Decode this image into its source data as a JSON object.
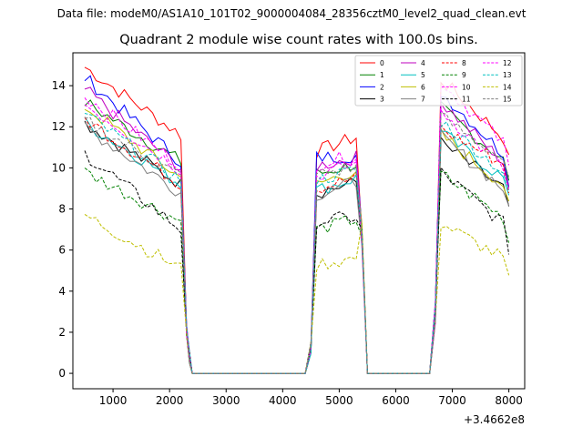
{
  "figure": {
    "suptitle": "Data file: modeM0/AS1A10_101T02_9000004084_28356cztM0_level2_quad_clean.evt"
  },
  "chart_data": {
    "type": "line",
    "title": "Quadrant 2 module wise count rates with 100.0s bins.",
    "xlabel": "",
    "ylabel": "",
    "x_offset_label": "+3.4662e8",
    "xlim": [
      290,
      8280
    ],
    "ylim": [
      -0.75,
      15.6
    ],
    "xticks": [
      1000,
      2000,
      3000,
      4000,
      5000,
      6000,
      7000,
      8000
    ],
    "xtick_labels": [
      "1000",
      "2000",
      "3000",
      "4000",
      "5000",
      "6000",
      "7000",
      "8000"
    ],
    "yticks": [
      0,
      2,
      4,
      6,
      8,
      10,
      12,
      14
    ],
    "ytick_labels": [
      "0",
      "2",
      "4",
      "6",
      "8",
      "10",
      "12",
      "14"
    ],
    "grid": false,
    "legend_position": "top-right",
    "legend_columns": 4,
    "segments": [
      [
        500,
        2200
      ],
      [
        4600,
        5300
      ],
      [
        6800,
        7900
      ]
    ],
    "zero_ranges": [
      [
        2400,
        4400
      ],
      [
        5500,
        6600
      ]
    ],
    "series": [
      {
        "name": "0",
        "color": "#ff0000",
        "style": "solid",
        "level": [
          14.9,
          11.6
        ],
        "seg2": [
          10.8,
          11.5
        ],
        "seg3": [
          14.3,
          11.5
        ]
      },
      {
        "name": "1",
        "color": "#008000",
        "style": "solid",
        "level": [
          13.2,
          10.3
        ],
        "seg2": [
          9.7,
          10.2
        ],
        "seg3": [
          12.9,
          10.4
        ]
      },
      {
        "name": "2",
        "color": "#0000ff",
        "style": "solid",
        "level": [
          14.4,
          10.3
        ],
        "seg2": [
          10.5,
          10.6
        ],
        "seg3": [
          13.7,
          10.7
        ]
      },
      {
        "name": "3",
        "color": "#000000",
        "style": "solid",
        "level": [
          12.2,
          9.2
        ],
        "seg2": [
          8.8,
          9.3
        ],
        "seg3": [
          11.2,
          9.0
        ]
      },
      {
        "name": "4",
        "color": "#bf00bf",
        "style": "solid",
        "level": [
          13.8,
          10.0
        ],
        "seg2": [
          10.1,
          10.5
        ],
        "seg3": [
          13.2,
          10.3
        ]
      },
      {
        "name": "5",
        "color": "#00bfbf",
        "style": "solid",
        "level": [
          12.2,
          9.2
        ],
        "seg2": [
          8.9,
          9.5
        ],
        "seg3": [
          11.7,
          9.5
        ]
      },
      {
        "name": "6",
        "color": "#bfbf00",
        "style": "solid",
        "level": [
          13.0,
          9.5
        ],
        "seg2": [
          9.2,
          9.9
        ],
        "seg3": [
          11.6,
          9.2
        ]
      },
      {
        "name": "7",
        "color": "#808080",
        "style": "solid",
        "level": [
          12.0,
          8.8
        ],
        "seg2": [
          8.7,
          9.3
        ],
        "seg3": [
          11.5,
          9.0
        ]
      },
      {
        "name": "8",
        "color": "#ff0000",
        "style": "dashed",
        "level": [
          12.4,
          9.2
        ],
        "seg2": [
          9.0,
          9.5
        ],
        "seg3": [
          11.9,
          10.2
        ]
      },
      {
        "name": "9",
        "color": "#008000",
        "style": "dashed",
        "level": [
          9.8,
          7.4
        ],
        "seg2": [
          7.0,
          7.5
        ],
        "seg3": [
          9.7,
          7.6
        ]
      },
      {
        "name": "10",
        "color": "#ff00ff",
        "style": "dashed",
        "level": [
          13.5,
          10.1
        ],
        "seg2": [
          10.2,
          10.6
        ],
        "seg3": [
          14.2,
          11.2
        ]
      },
      {
        "name": "11",
        "color": "#000000",
        "style": "dashed",
        "level": [
          10.7,
          7.0
        ],
        "seg2": [
          7.4,
          7.6
        ],
        "seg3": [
          9.8,
          7.3
        ]
      },
      {
        "name": "12",
        "color": "#ff00ff",
        "style": "dashed",
        "level": [
          13.1,
          9.9
        ],
        "seg2": [
          9.6,
          10.2
        ],
        "seg3": [
          12.8,
          10.0
        ]
      },
      {
        "name": "13",
        "color": "#00bfbf",
        "style": "dashed",
        "level": [
          12.6,
          9.4
        ],
        "seg2": [
          9.4,
          9.9
        ],
        "seg3": [
          12.3,
          9.8
        ]
      },
      {
        "name": "14",
        "color": "#bfbf00",
        "style": "dashed",
        "level": [
          7.7,
          5.1
        ],
        "seg2": [
          5.3,
          5.6
        ],
        "seg3": [
          7.3,
          5.6
        ]
      },
      {
        "name": "15",
        "color": "#808080",
        "style": "dashed",
        "level": [
          12.3,
          9.6
        ],
        "seg2": [
          9.7,
          10.0
        ],
        "seg3": [
          12.5,
          10.4
        ]
      }
    ]
  }
}
